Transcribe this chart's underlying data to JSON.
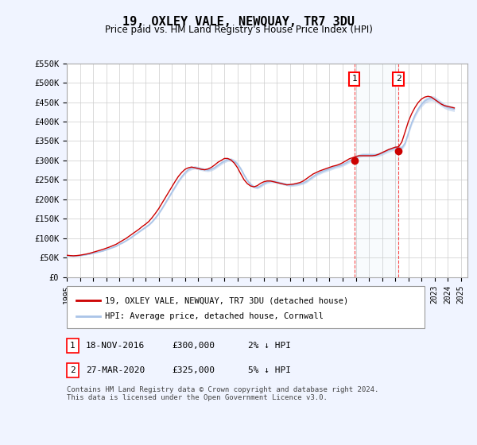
{
  "title": "19, OXLEY VALE, NEWQUAY, TR7 3DU",
  "subtitle": "Price paid vs. HM Land Registry's House Price Index (HPI)",
  "ylabel": "",
  "ylim": [
    0,
    550000
  ],
  "yticks": [
    0,
    50000,
    100000,
    150000,
    200000,
    250000,
    300000,
    350000,
    400000,
    450000,
    500000,
    550000
  ],
  "ytick_labels": [
    "£0",
    "£50K",
    "£100K",
    "£150K",
    "£200K",
    "£250K",
    "£300K",
    "£350K",
    "£400K",
    "£450K",
    "£500K",
    "£550K"
  ],
  "xlim_start": 1995.0,
  "xlim_end": 2025.5,
  "xtick_years": [
    1995,
    1996,
    1997,
    1998,
    1999,
    2000,
    2001,
    2002,
    2003,
    2004,
    2005,
    2006,
    2007,
    2008,
    2009,
    2010,
    2011,
    2012,
    2013,
    2014,
    2015,
    2016,
    2017,
    2018,
    2019,
    2020,
    2021,
    2022,
    2023,
    2024,
    2025
  ],
  "bg_color": "#f0f4ff",
  "plot_bg": "#ffffff",
  "grid_color": "#cccccc",
  "hpi_color": "#aac4e8",
  "price_color": "#cc0000",
  "transaction1_x": 2016.89,
  "transaction1_y": 300000,
  "transaction2_x": 2020.24,
  "transaction2_y": 325000,
  "legend_line1": "19, OXLEY VALE, NEWQUAY, TR7 3DU (detached house)",
  "legend_line2": "HPI: Average price, detached house, Cornwall",
  "table_row1_num": "1",
  "table_row1_date": "18-NOV-2016",
  "table_row1_price": "£300,000",
  "table_row1_hpi": "2% ↓ HPI",
  "table_row2_num": "2",
  "table_row2_date": "27-MAR-2020",
  "table_row2_price": "£325,000",
  "table_row2_hpi": "5% ↓ HPI",
  "footer": "Contains HM Land Registry data © Crown copyright and database right 2024.\nThis data is licensed under the Open Government Licence v3.0.",
  "hpi_data_years": [
    1995.0,
    1995.25,
    1995.5,
    1995.75,
    1996.0,
    1996.25,
    1996.5,
    1996.75,
    1997.0,
    1997.25,
    1997.5,
    1997.75,
    1998.0,
    1998.25,
    1998.5,
    1998.75,
    1999.0,
    1999.25,
    1999.5,
    1999.75,
    2000.0,
    2000.25,
    2000.5,
    2000.75,
    2001.0,
    2001.25,
    2001.5,
    2001.75,
    2002.0,
    2002.25,
    2002.5,
    2002.75,
    2003.0,
    2003.25,
    2003.5,
    2003.75,
    2004.0,
    2004.25,
    2004.5,
    2004.75,
    2005.0,
    2005.25,
    2005.5,
    2005.75,
    2006.0,
    2006.25,
    2006.5,
    2006.75,
    2007.0,
    2007.25,
    2007.5,
    2007.75,
    2008.0,
    2008.25,
    2008.5,
    2008.75,
    2009.0,
    2009.25,
    2009.5,
    2009.75,
    2010.0,
    2010.25,
    2010.5,
    2010.75,
    2011.0,
    2011.25,
    2011.5,
    2011.75,
    2012.0,
    2012.25,
    2012.5,
    2012.75,
    2013.0,
    2013.25,
    2013.5,
    2013.75,
    2014.0,
    2014.25,
    2014.5,
    2014.75,
    2015.0,
    2015.25,
    2015.5,
    2015.75,
    2016.0,
    2016.25,
    2016.5,
    2016.75,
    2017.0,
    2017.25,
    2017.5,
    2017.75,
    2018.0,
    2018.25,
    2018.5,
    2018.75,
    2019.0,
    2019.25,
    2019.5,
    2019.75,
    2020.0,
    2020.25,
    2020.5,
    2020.75,
    2021.0,
    2021.25,
    2021.5,
    2021.75,
    2022.0,
    2022.25,
    2022.5,
    2022.75,
    2023.0,
    2023.25,
    2023.5,
    2023.75,
    2024.0,
    2024.25,
    2024.5
  ],
  "hpi_data_values": [
    55000,
    54000,
    53500,
    54000,
    55000,
    56000,
    57500,
    59000,
    61000,
    63000,
    65000,
    67000,
    70000,
    73000,
    76000,
    79000,
    84000,
    88000,
    93000,
    98000,
    104000,
    110000,
    116000,
    122000,
    128000,
    134000,
    142000,
    152000,
    163000,
    176000,
    190000,
    204000,
    218000,
    232000,
    246000,
    258000,
    268000,
    276000,
    280000,
    282000,
    280000,
    278000,
    276000,
    275000,
    277000,
    281000,
    287000,
    293000,
    298000,
    302000,
    302000,
    298000,
    290000,
    278000,
    262000,
    248000,
    238000,
    232000,
    230000,
    234000,
    240000,
    244000,
    246000,
    246000,
    244000,
    242000,
    240000,
    238000,
    236000,
    237000,
    238000,
    240000,
    242000,
    246000,
    252000,
    258000,
    264000,
    268000,
    272000,
    275000,
    278000,
    281000,
    284000,
    286000,
    289000,
    293000,
    298000,
    303000,
    308000,
    312000,
    314000,
    314000,
    314000,
    314000,
    314000,
    315000,
    318000,
    322000,
    326000,
    329000,
    332000,
    333000,
    332000,
    344000,
    370000,
    396000,
    416000,
    432000,
    444000,
    453000,
    458000,
    460000,
    458000,
    452000,
    446000,
    440000,
    436000,
    434000,
    432000
  ],
  "price_data_years": [
    1995.0,
    1995.25,
    1995.5,
    1995.75,
    1996.0,
    1996.25,
    1996.5,
    1996.75,
    1997.0,
    1997.25,
    1997.5,
    1997.75,
    1998.0,
    1998.25,
    1998.5,
    1998.75,
    1999.0,
    1999.25,
    1999.5,
    1999.75,
    2000.0,
    2000.25,
    2000.5,
    2000.75,
    2001.0,
    2001.25,
    2001.5,
    2001.75,
    2002.0,
    2002.25,
    2002.5,
    2002.75,
    2003.0,
    2003.25,
    2003.5,
    2003.75,
    2004.0,
    2004.25,
    2004.5,
    2004.75,
    2005.0,
    2005.25,
    2005.5,
    2005.75,
    2006.0,
    2006.25,
    2006.5,
    2006.75,
    2007.0,
    2007.25,
    2007.5,
    2007.75,
    2008.0,
    2008.25,
    2008.5,
    2008.75,
    2009.0,
    2009.25,
    2009.5,
    2009.75,
    2010.0,
    2010.25,
    2010.5,
    2010.75,
    2011.0,
    2011.25,
    2011.5,
    2011.75,
    2012.0,
    2012.25,
    2012.5,
    2012.75,
    2013.0,
    2013.25,
    2013.5,
    2013.75,
    2014.0,
    2014.25,
    2014.5,
    2014.75,
    2015.0,
    2015.25,
    2015.5,
    2015.75,
    2016.0,
    2016.25,
    2016.5,
    2016.75,
    2017.0,
    2017.25,
    2017.5,
    2017.75,
    2018.0,
    2018.25,
    2018.5,
    2018.75,
    2019.0,
    2019.25,
    2019.5,
    2019.75,
    2020.0,
    2020.25,
    2020.5,
    2020.75,
    2021.0,
    2021.25,
    2021.5,
    2021.75,
    2022.0,
    2022.25,
    2022.5,
    2022.75,
    2023.0,
    2023.25,
    2023.5,
    2023.75,
    2024.0,
    2024.25,
    2024.5
  ],
  "price_data_values": [
    56000,
    55000,
    54500,
    55000,
    56000,
    57500,
    59000,
    61000,
    63500,
    66000,
    68500,
    71000,
    74000,
    77000,
    80500,
    84000,
    89000,
    94000,
    99000,
    105000,
    111000,
    117000,
    123000,
    130000,
    136000,
    143000,
    153000,
    164000,
    176000,
    190000,
    204000,
    218000,
    232000,
    246000,
    259000,
    269000,
    277000,
    281000,
    283000,
    281000,
    279000,
    277000,
    276000,
    278000,
    282000,
    288000,
    295000,
    300000,
    305000,
    305000,
    301000,
    293000,
    281000,
    265000,
    250000,
    240000,
    234000,
    232000,
    235000,
    241000,
    245000,
    247000,
    247000,
    245000,
    243000,
    241000,
    239000,
    237000,
    238000,
    239000,
    241000,
    243000,
    247000,
    253000,
    259000,
    265000,
    269000,
    273000,
    276000,
    279000,
    282000,
    285000,
    287000,
    290000,
    294000,
    299000,
    304000,
    307000,
    310000,
    312000,
    312000,
    312000,
    312000,
    312000,
    313000,
    316000,
    320000,
    324000,
    328000,
    331000,
    334000,
    335000,
    347000,
    373000,
    400000,
    420000,
    436000,
    449000,
    458000,
    463000,
    465000,
    463000,
    457000,
    451000,
    445000,
    441000,
    439000,
    437000,
    435000
  ]
}
